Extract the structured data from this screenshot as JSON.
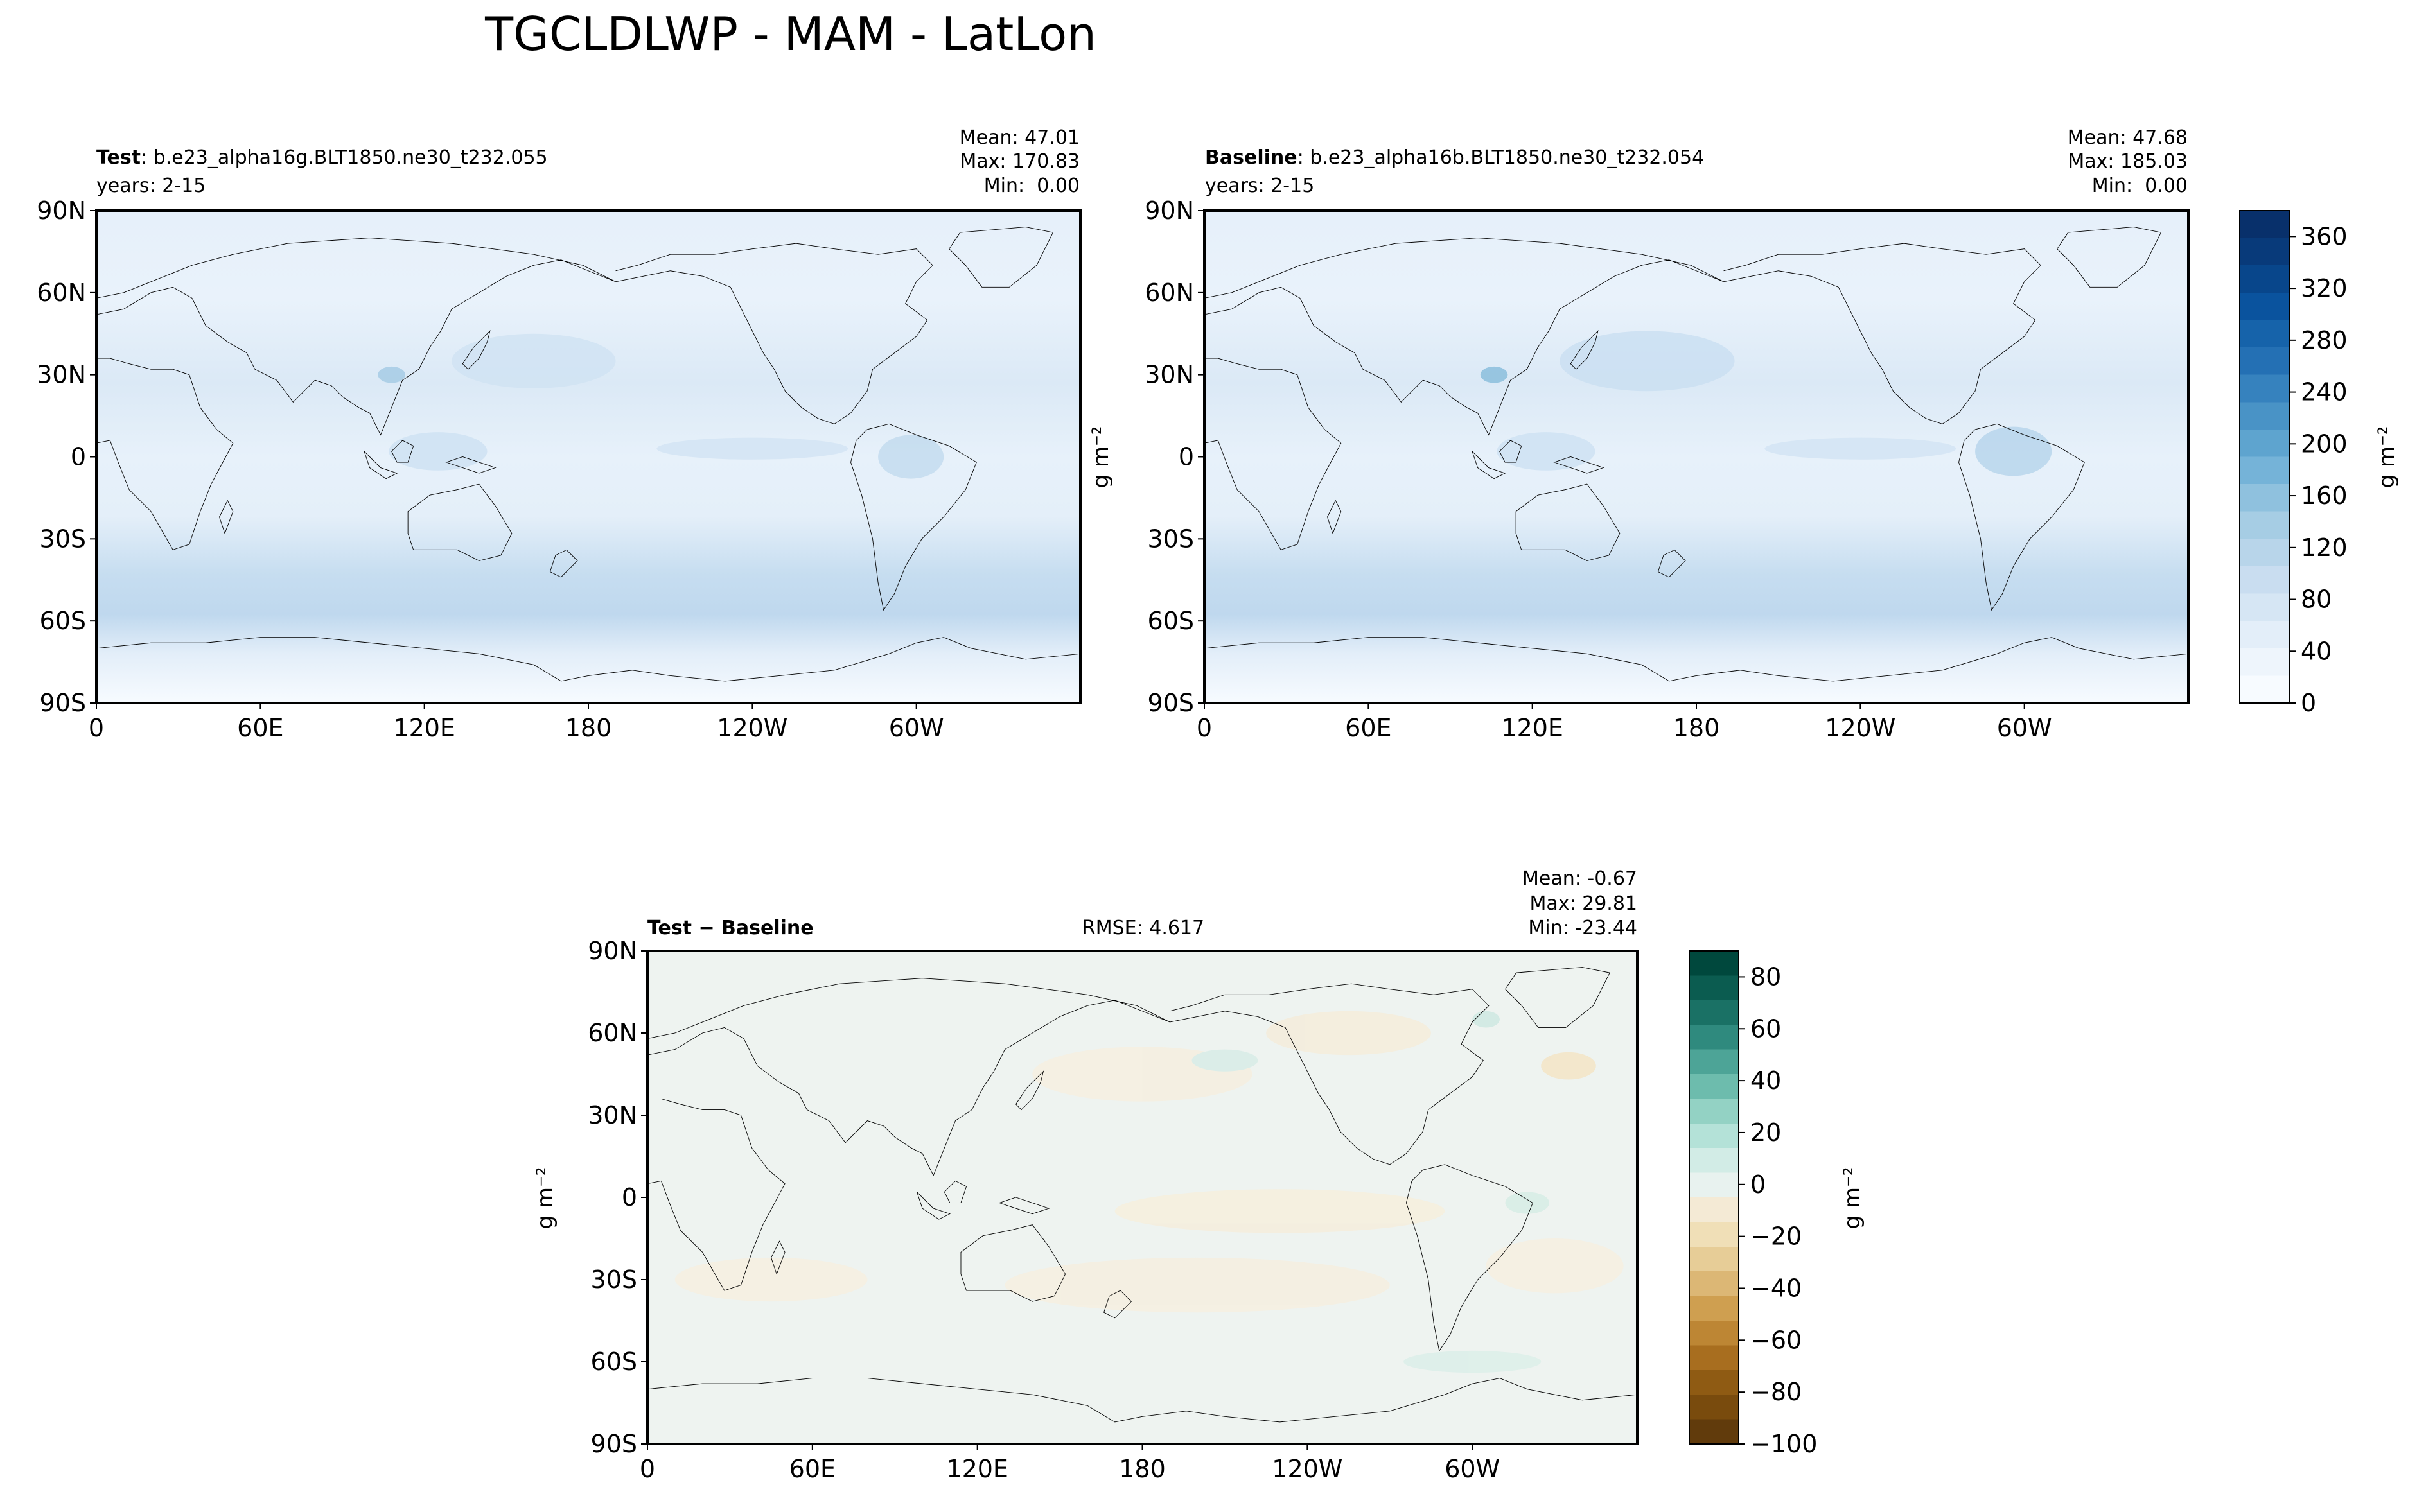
{
  "figure": {
    "title": "TGCLDLWP - MAM - LatLon"
  },
  "chart_data": [
    {
      "type": "heatmap",
      "id": "test",
      "label_bold": "Test",
      "label_rest": ": b.e23_alpha16g.BLT1850.ne30_t232.055",
      "years": "years: 2-15",
      "stats": [
        "Mean: 47.01",
        "Max: 170.83",
        "Min:  0.00"
      ],
      "ylabel": "",
      "xticks": [
        "0",
        "60E",
        "120E",
        "180",
        "120W",
        "60W"
      ],
      "yticks": [
        "90N",
        "60N",
        "30N",
        "0",
        "30S",
        "60S",
        "90S"
      ],
      "xlim": [
        0,
        360
      ],
      "ylim": [
        -90,
        90
      ],
      "colormap": "Blues",
      "zlim": [
        0,
        380
      ],
      "mean": 47.01,
      "max": 170.83,
      "min": 0.0
    },
    {
      "type": "heatmap",
      "id": "baseline",
      "label_bold": "Baseline",
      "label_rest": ": b.e23_alpha16b.BLT1850.ne30_t232.054",
      "years": "years: 2-15",
      "stats": [
        "Mean: 47.68",
        "Max: 185.03",
        "Min:  0.00"
      ],
      "ylabel": "g m⁻²",
      "xticks": [
        "0",
        "60E",
        "120E",
        "180",
        "120W",
        "60W"
      ],
      "yticks": [
        "90N",
        "60N",
        "30N",
        "0",
        "30S",
        "60S",
        "90S"
      ],
      "xlim": [
        0,
        360
      ],
      "ylim": [
        -90,
        90
      ],
      "colormap": "Blues",
      "zlim": [
        0,
        380
      ],
      "mean": 47.68,
      "max": 185.03,
      "min": 0.0,
      "colorbar": {
        "ticks": [
          "0",
          "40",
          "80",
          "120",
          "160",
          "200",
          "240",
          "280",
          "320",
          "360"
        ],
        "label": "g m⁻²"
      }
    },
    {
      "type": "heatmap",
      "id": "diff",
      "label_bold": "Test − Baseline",
      "rmse": "RMSE: 4.617",
      "stats": [
        "Mean: -0.67",
        "Max: 29.81",
        "Min: -23.44"
      ],
      "ylabel": "g m⁻²",
      "xticks": [
        "0",
        "60E",
        "120E",
        "180",
        "120W",
        "60W"
      ],
      "yticks": [
        "90N",
        "60N",
        "30N",
        "0",
        "30S",
        "60S",
        "90S"
      ],
      "xlim": [
        0,
        360
      ],
      "ylim": [
        -90,
        90
      ],
      "colormap": "BrBG",
      "zlim": [
        -100,
        90
      ],
      "mean": -0.67,
      "max": 29.81,
      "min": -23.44,
      "colorbar": {
        "ticks": [
          "80",
          "60",
          "40",
          "20",
          "0",
          "−20",
          "−40",
          "−60",
          "−80",
          "−100"
        ],
        "label": "g m⁻²"
      }
    }
  ],
  "colors": {
    "blues": [
      "#f7fbff",
      "#eef5fc",
      "#e3eef9",
      "#d6e6f4",
      "#c9ddf0",
      "#b8d5ea",
      "#a6cde4",
      "#8fc1de",
      "#75b3d8",
      "#5ea4cf",
      "#4993c6",
      "#3682be",
      "#2470b4",
      "#1663aa",
      "#0a539e",
      "#08468b",
      "#083a7a",
      "#08306b"
    ],
    "brbg": [
      "#613b0c",
      "#794b0d",
      "#8f5b13",
      "#a86e1f",
      "#bd8634",
      "#cf9f50",
      "#dcb775",
      "#e7cd97",
      "#f0dfb7",
      "#f4ead5",
      "#e8f2ef",
      "#d2ece6",
      "#b4e2d8",
      "#93d2c4",
      "#6dbcad",
      "#4da497",
      "#2f8a7e",
      "#1a7165",
      "#0b5c50",
      "#00483d"
    ]
  }
}
